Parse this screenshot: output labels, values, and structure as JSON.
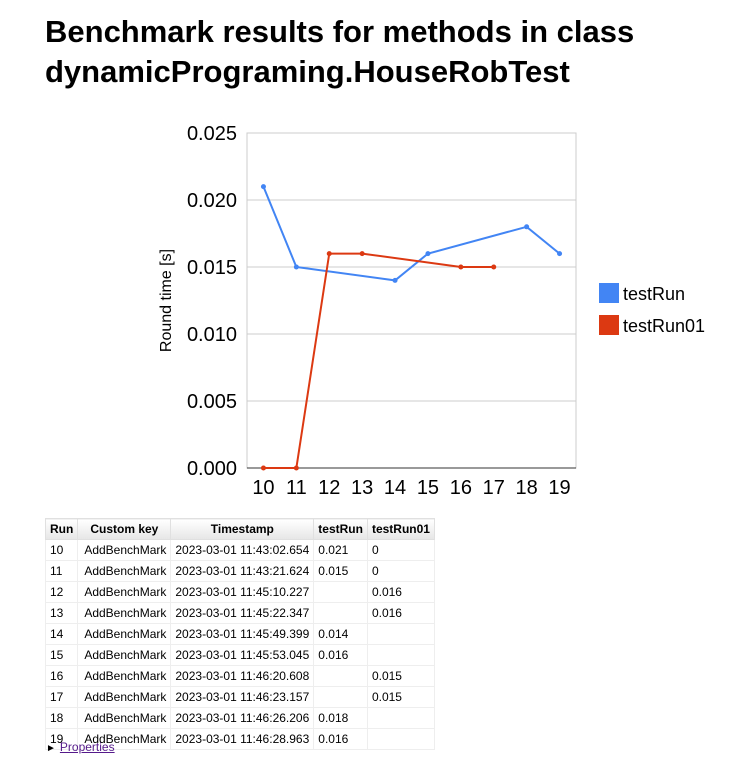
{
  "title_lines": [
    "Benchmark results for methods in class",
    "dynamicPrograming.HouseRobTest"
  ],
  "chart_data": {
    "type": "line",
    "x": [
      "10",
      "11",
      "12",
      "13",
      "14",
      "15",
      "16",
      "17",
      "18",
      "19"
    ],
    "series": [
      {
        "name": "testRun",
        "color": "#4285f4",
        "values": [
          0.021,
          0.015,
          null,
          null,
          0.014,
          0.016,
          null,
          null,
          0.018,
          0.016
        ]
      },
      {
        "name": "testRun01",
        "color": "#dc3912",
        "values": [
          0,
          0,
          0.016,
          0.016,
          null,
          null,
          0.015,
          0.015,
          null,
          null
        ]
      }
    ],
    "ylabel": "Round time [s]",
    "xlabel": "",
    "ylim": [
      0,
      0.025
    ],
    "yticks": [
      "0.000",
      "0.005",
      "0.010",
      "0.015",
      "0.020",
      "0.025"
    ],
    "grid": true,
    "legend": "right"
  },
  "table": {
    "headers": [
      "Run",
      "Custom key",
      "Timestamp",
      "testRun",
      "testRun01"
    ],
    "rows": [
      [
        "10",
        "AddBenchMark",
        "2023-03-01 11:43:02.654",
        "0.021",
        "0"
      ],
      [
        "11",
        "AddBenchMark",
        "2023-03-01 11:43:21.624",
        "0.015",
        "0"
      ],
      [
        "12",
        "AddBenchMark",
        "2023-03-01 11:45:10.227",
        "",
        "0.016"
      ],
      [
        "13",
        "AddBenchMark",
        "2023-03-01 11:45:22.347",
        "",
        "0.016"
      ],
      [
        "14",
        "AddBenchMark",
        "2023-03-01 11:45:49.399",
        "0.014",
        ""
      ],
      [
        "15",
        "AddBenchMark",
        "2023-03-01 11:45:53.045",
        "0.016",
        ""
      ],
      [
        "16",
        "AddBenchMark",
        "2023-03-01 11:46:20.608",
        "",
        "0.015"
      ],
      [
        "17",
        "AddBenchMark",
        "2023-03-01 11:46:23.157",
        "",
        "0.015"
      ],
      [
        "18",
        "AddBenchMark",
        "2023-03-01 11:46:26.206",
        "0.018",
        ""
      ],
      [
        "19",
        "AddBenchMark",
        "2023-03-01 11:46:28.963",
        "0.016",
        ""
      ]
    ]
  },
  "properties": {
    "arrow": "►",
    "label": "Properties"
  }
}
